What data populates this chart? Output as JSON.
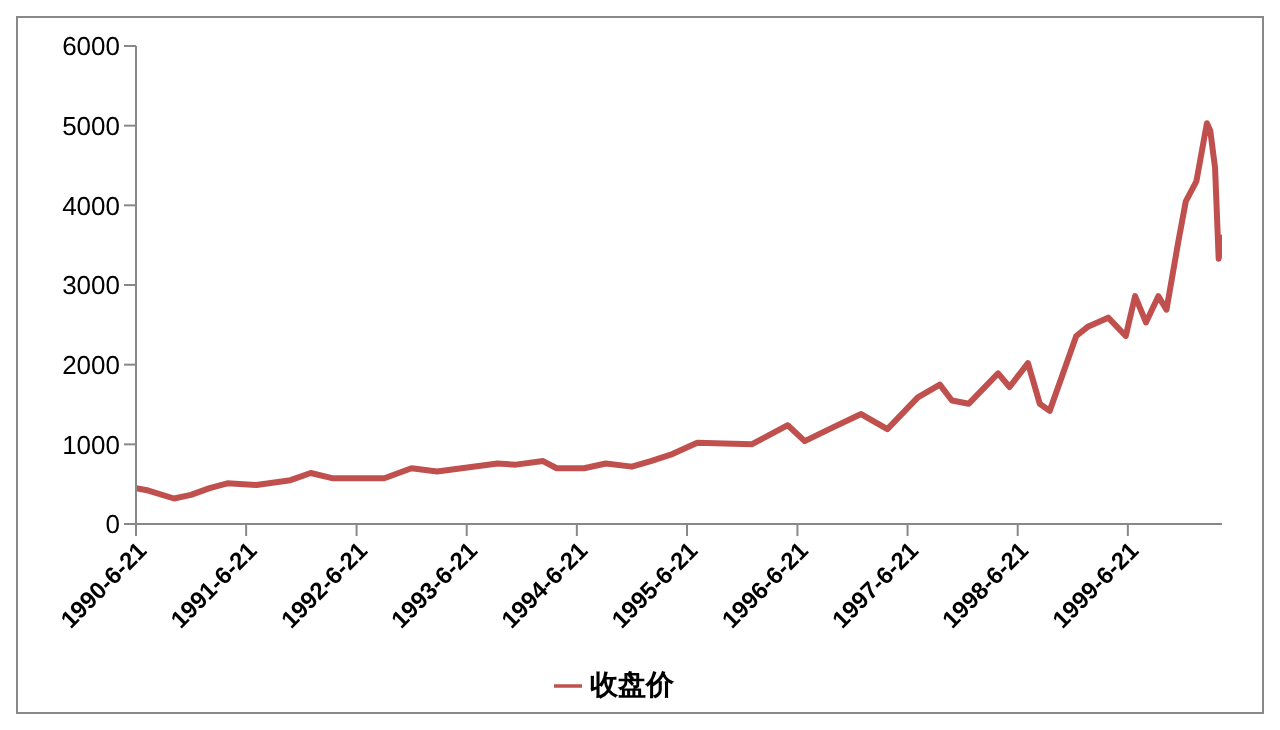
{
  "chart_data": {
    "type": "line",
    "x": [
      "1990-06-21",
      "1990-08-01",
      "1990-10-25",
      "1990-12-20",
      "1991-02-20",
      "1991-04-20",
      "1991-07-25",
      "1991-11-15",
      "1992-01-21",
      "1992-04-01",
      "1992-09-21",
      "1992-12-20",
      "1993-03-15",
      "1993-10-01",
      "1993-12-01",
      "1994-03-01",
      "1994-04-15",
      "1994-07-15",
      "1994-09-25",
      "1994-12-20",
      "1995-02-21",
      "1995-04-28",
      "1995-07-25",
      "1996-01-21",
      "1996-05-20",
      "1996-07-15",
      "1996-10-15",
      "1997-01-18",
      "1997-04-15",
      "1997-07-25",
      "1997-10-06",
      "1997-11-15",
      "1998-01-10",
      "1998-04-17",
      "1998-05-25",
      "1998-07-25",
      "1998-09-02",
      "1998-10-05",
      "1999-01-01",
      "1999-02-10",
      "1999-04-17",
      "1999-06-14",
      "1999-07-15",
      "1999-08-20",
      "1999-09-30",
      "1999-10-27",
      "1999-12-05",
      "1999-12-30",
      "2000-02-03",
      "2000-03-09",
      "2000-03-20",
      "2000-04-05",
      "2000-04-17",
      "2000-04-28"
    ],
    "series": [
      {
        "name": "收盘价",
        "color": "#c0504d",
        "values": [
          450,
          420,
          320,
          365,
          450,
          510,
          490,
          550,
          640,
          575,
          575,
          700,
          660,
          760,
          745,
          790,
          700,
          700,
          760,
          720,
          790,
          870,
          1020,
          1000,
          1240,
          1040,
          1210,
          1380,
          1190,
          1590,
          1750,
          1550,
          1510,
          1890,
          1720,
          2020,
          1510,
          1420,
          2360,
          2480,
          2590,
          2360,
          2860,
          2530,
          2860,
          2690,
          3540,
          4050,
          4300,
          5030,
          4940,
          4470,
          3330,
          3630
        ]
      }
    ],
    "xlim": [
      "1990-06-21",
      "2000-04-28"
    ],
    "xticks": [
      {
        "value": "1990-06-21",
        "label": "1990-6-21"
      },
      {
        "value": "1991-06-21",
        "label": "1991-6-21"
      },
      {
        "value": "1992-06-21",
        "label": "1992-6-21"
      },
      {
        "value": "1993-06-21",
        "label": "1993-6-21"
      },
      {
        "value": "1994-06-21",
        "label": "1994-6-21"
      },
      {
        "value": "1995-06-21",
        "label": "1995-6-21"
      },
      {
        "value": "1996-06-21",
        "label": "1996-6-21"
      },
      {
        "value": "1997-06-21",
        "label": "1997-6-21"
      },
      {
        "value": "1998-06-21",
        "label": "1998-6-21"
      },
      {
        "value": "1999-06-21",
        "label": "1999-6-21"
      }
    ],
    "ylim": [
      0,
      6000
    ],
    "yticks": [
      0,
      1000,
      2000,
      3000,
      4000,
      5000,
      6000
    ],
    "grid": false,
    "legend": "bottom",
    "marker": "none",
    "line_style": "solid"
  }
}
